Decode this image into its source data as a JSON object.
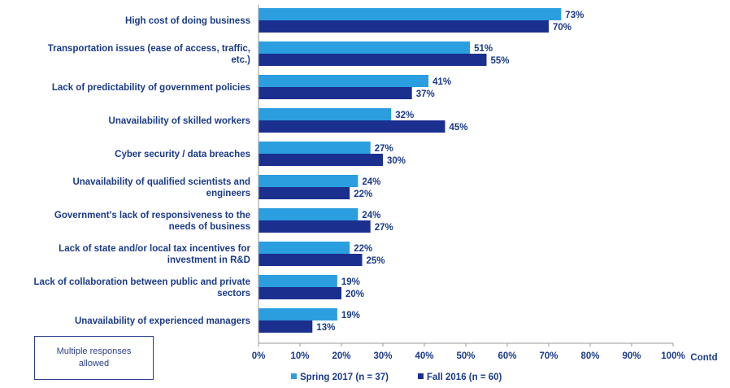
{
  "chart_data": {
    "type": "bar",
    "orientation": "horizontal",
    "categories": [
      [
        "High cost of doing business"
      ],
      [
        "Transportation issues (ease of access, traffic,",
        "etc.)"
      ],
      [
        "Lack of predictability of government policies"
      ],
      [
        "Unavailability of skilled workers"
      ],
      [
        "Cyber security / data breaches"
      ],
      [
        "Unavailability of qualified scientists and",
        "engineers"
      ],
      [
        "Government's lack of responsiveness to the",
        "needs of business"
      ],
      [
        "Lack of state and/or local tax incentives for",
        "investment in R&D"
      ],
      [
        "Lack of collaboration between public and private",
        "sectors"
      ],
      [
        "Unavailability of experienced managers"
      ]
    ],
    "series": [
      {
        "name": "Spring 2017 (n = 37)",
        "color": "#2b9ee0",
        "values": [
          73,
          51,
          41,
          32,
          27,
          24,
          24,
          22,
          19,
          19
        ],
        "labels": [
          "73%",
          "51%",
          "41%",
          "32%",
          "27%",
          "24%",
          "24%",
          "22%",
          "19%",
          "19%"
        ]
      },
      {
        "name": "Fall 2016 (n = 60)",
        "color": "#1b2f8f",
        "values": [
          70,
          55,
          37,
          45,
          30,
          22,
          27,
          25,
          20,
          13
        ],
        "labels": [
          "70%",
          "55%",
          "37%",
          "45%",
          "30%",
          "22%",
          "27%",
          "25%",
          "20%",
          "13%"
        ]
      }
    ],
    "xlim": [
      0,
      100
    ],
    "xticks": [
      "0%",
      "10%",
      "20%",
      "30%",
      "40%",
      "50%",
      "60%",
      "70%",
      "80%",
      "90%",
      "100%"
    ],
    "grid": false,
    "legend_position": "bottom",
    "corner_label": "Contd"
  },
  "note": {
    "line1": "Multiple responses",
    "line2": "allowed"
  }
}
